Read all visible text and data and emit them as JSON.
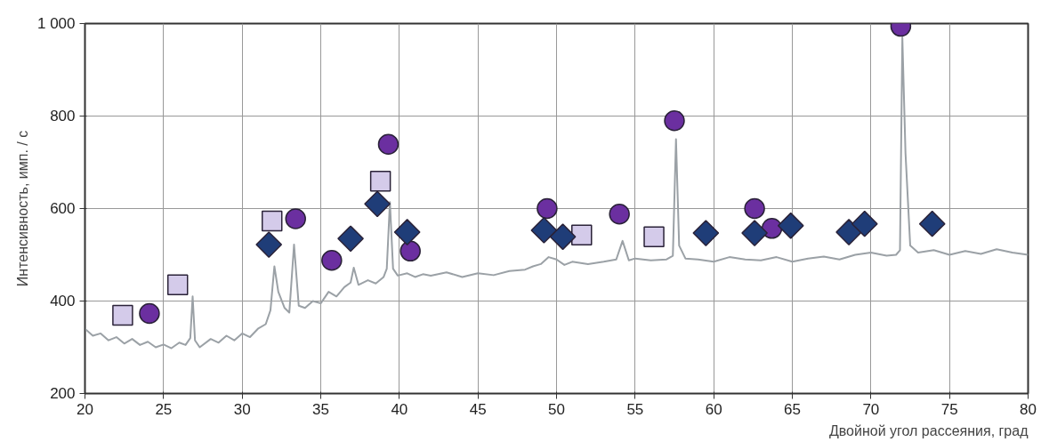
{
  "chart_data": {
    "type": "scatter",
    "xlabel": "Двойной угол рассеяния, град",
    "ylabel": "Интенсивность, имп. / с",
    "xlim": [
      20,
      80
    ],
    "ylim": [
      200,
      1000
    ],
    "xticks": [
      20,
      25,
      30,
      35,
      40,
      45,
      50,
      55,
      60,
      65,
      70,
      75,
      80
    ],
    "yticks": [
      200,
      400,
      600,
      800,
      {
        "value": 1000,
        "label": "1 000"
      }
    ],
    "grid": true,
    "series": [
      {
        "type": "line",
        "marker": "none",
        "line_style": "solid",
        "color": "#9ba1a6",
        "x": [
          20,
          20.5,
          21,
          21.5,
          22,
          22.5,
          23,
          23.5,
          24,
          24.5,
          25,
          25.5,
          26,
          26.4,
          26.7,
          26.85,
          27,
          27.3,
          28,
          28.5,
          29,
          29.5,
          30,
          30.5,
          31,
          31.5,
          31.8,
          32.05,
          32.3,
          32.7,
          33,
          33.3,
          33.6,
          34,
          34.5,
          35,
          35.5,
          36,
          36.5,
          36.9,
          37.1,
          37.4,
          38,
          38.5,
          39,
          39.2,
          39.4,
          39.6,
          39.9,
          40.5,
          41,
          41.5,
          42,
          43,
          44,
          45,
          46,
          47,
          48,
          48.5,
          49,
          49.5,
          50,
          50.5,
          51,
          52,
          53,
          53.8,
          54.2,
          54.6,
          55,
          56,
          57,
          57.4,
          57.6,
          57.8,
          58.2,
          59,
          60,
          61,
          62,
          63,
          64,
          65,
          66,
          67,
          68,
          69,
          70,
          71,
          71.6,
          71.85,
          72,
          72.2,
          72.5,
          73,
          74,
          75,
          76,
          77,
          78,
          79,
          80
        ],
        "values": [
          340,
          325,
          330,
          315,
          322,
          308,
          318,
          305,
          312,
          300,
          306,
          298,
          310,
          305,
          320,
          410,
          315,
          300,
          318,
          310,
          325,
          315,
          330,
          322,
          340,
          350,
          380,
          475,
          420,
          385,
          375,
          522,
          390,
          385,
          400,
          395,
          420,
          410,
          430,
          440,
          472,
          435,
          445,
          438,
          452,
          470,
          614,
          470,
          455,
          460,
          452,
          458,
          455,
          462,
          452,
          460,
          456,
          465,
          468,
          475,
          480,
          495,
          490,
          478,
          485,
          480,
          485,
          490,
          530,
          488,
          492,
          488,
          490,
          498,
          750,
          520,
          492,
          490,
          485,
          495,
          490,
          488,
          495,
          485,
          492,
          496,
          490,
          500,
          505,
          498,
          500,
          510,
          970,
          720,
          520,
          505,
          510,
          500,
          508,
          502,
          512,
          505,
          500
        ]
      },
      {
        "marker": "square",
        "color": "#d4cbea",
        "x": [
          22.4,
          25.9,
          31.9,
          38.8,
          51.6,
          56.2
        ],
        "values": [
          369,
          435,
          573,
          659,
          543,
          539
        ]
      },
      {
        "marker": "circle",
        "color": "#6b2fa0",
        "x": [
          24.1,
          33.4,
          35.7,
          39.3,
          40.7,
          49.4,
          54.0,
          57.5,
          62.6,
          63.7,
          71.9
        ],
        "values": [
          373,
          578,
          488,
          739,
          508,
          600,
          588,
          790,
          600,
          557,
          994
        ]
      },
      {
        "marker": "diamond",
        "color": "#1f3d78",
        "x": [
          31.7,
          36.9,
          38.6,
          40.5,
          49.2,
          50.4,
          59.5,
          62.6,
          64.9,
          68.6,
          69.6,
          73.9
        ],
        "values": [
          522,
          535,
          610,
          549,
          553,
          539,
          547,
          547,
          563,
          549,
          567,
          567
        ]
      }
    ]
  }
}
